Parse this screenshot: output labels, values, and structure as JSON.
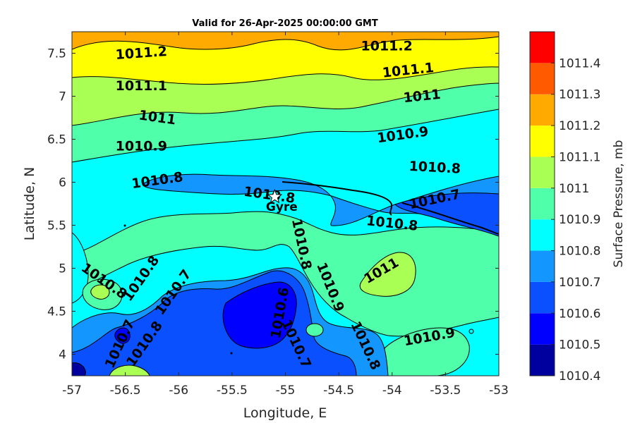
{
  "chart_data": {
    "type": "contour",
    "title": "Valid for 26-Apr-2025 00:00:00 GMT",
    "xlabel": "Longitude, E",
    "ylabel": "Latitude, N",
    "xlim": [
      -57,
      -53
    ],
    "ylim": [
      3.75,
      7.75
    ],
    "xticks": [
      -57,
      -56.5,
      -56,
      -55.5,
      -55,
      -54.5,
      -54,
      -53.5,
      -53
    ],
    "yticks": [
      4,
      4.5,
      5,
      5.5,
      6,
      6.5,
      7,
      7.5
    ],
    "colorbar": {
      "label": "Surface Pressure, mb",
      "levels": [
        1010.4,
        1010.5,
        1010.6,
        1010.7,
        1010.8,
        1010.9,
        1011,
        1011.1,
        1011.2,
        1011.3,
        1011.4
      ],
      "tick_labels": [
        "1010.4",
        "1010.5",
        "1010.6",
        "1010.7",
        "1010.8",
        "1010.9",
        "1011",
        "1011.1",
        "1011.2",
        "1011.3",
        "1011.4"
      ],
      "colors": [
        "#00009f",
        "#0000ff",
        "#0a50ff",
        "#1496ff",
        "#00ffff",
        "#50ffaa",
        "#aaff55",
        "#ffff00",
        "#ffaa00",
        "#ff5a00",
        "#ff0000"
      ]
    },
    "contour_labels": [
      {
        "text": "1011.2",
        "x": -56.35,
        "y": 7.5,
        "angle": -4
      },
      {
        "text": "1011.2",
        "x": -54.05,
        "y": 7.58,
        "angle": 0
      },
      {
        "text": "1011.1",
        "x": -56.35,
        "y": 7.12,
        "angle": 0
      },
      {
        "text": "1011.1",
        "x": -53.85,
        "y": 7.3,
        "angle": -6
      },
      {
        "text": "1011",
        "x": -56.2,
        "y": 6.75,
        "angle": 8
      },
      {
        "text": "1011",
        "x": -53.72,
        "y": 7.0,
        "angle": -6
      },
      {
        "text": "1010.9",
        "x": -56.35,
        "y": 6.42,
        "angle": 0
      },
      {
        "text": "1010.9",
        "x": -53.9,
        "y": 6.55,
        "angle": -8
      },
      {
        "text": "1010.8",
        "x": -56.2,
        "y": 6.02,
        "angle": -8
      },
      {
        "text": "1010.8",
        "x": -55.15,
        "y": 5.85,
        "angle": 8
      },
      {
        "text": "1010.8",
        "x": -53.6,
        "y": 6.17,
        "angle": 3
      },
      {
        "text": "1010.7",
        "x": -53.6,
        "y": 5.8,
        "angle": -12
      },
      {
        "text": "1010.8",
        "x": -54.0,
        "y": 5.52,
        "angle": 6
      },
      {
        "text": "1010.8",
        "x": -54.85,
        "y": 5.28,
        "angle": 78
      },
      {
        "text": "1011",
        "x": -54.1,
        "y": 4.97,
        "angle": -30
      },
      {
        "text": "1010.9",
        "x": -54.58,
        "y": 4.78,
        "angle": 68
      },
      {
        "text": "1010.8",
        "x": -56.7,
        "y": 4.85,
        "angle": 35
      },
      {
        "text": "1010.8",
        "x": -56.35,
        "y": 4.88,
        "angle": -55
      },
      {
        "text": "1010.7",
        "x": -56.05,
        "y": 4.72,
        "angle": -55
      },
      {
        "text": "1010.6",
        "x": -55.05,
        "y": 4.48,
        "angle": -80
      },
      {
        "text": "1010.7",
        "x": -54.9,
        "y": 4.12,
        "angle": 65
      },
      {
        "text": "1010.8",
        "x": -54.25,
        "y": 4.1,
        "angle": 65
      },
      {
        "text": "1010.9",
        "x": -53.65,
        "y": 4.2,
        "angle": -10
      },
      {
        "text": "1010.7",
        "x": -56.55,
        "y": 4.12,
        "angle": -65
      },
      {
        "text": "1010.8",
        "x": -56.32,
        "y": 4.12,
        "angle": -55
      }
    ],
    "markers": [
      {
        "label": "Gyre",
        "x": -55.1,
        "y": 5.83,
        "symbol": "star"
      }
    ]
  }
}
